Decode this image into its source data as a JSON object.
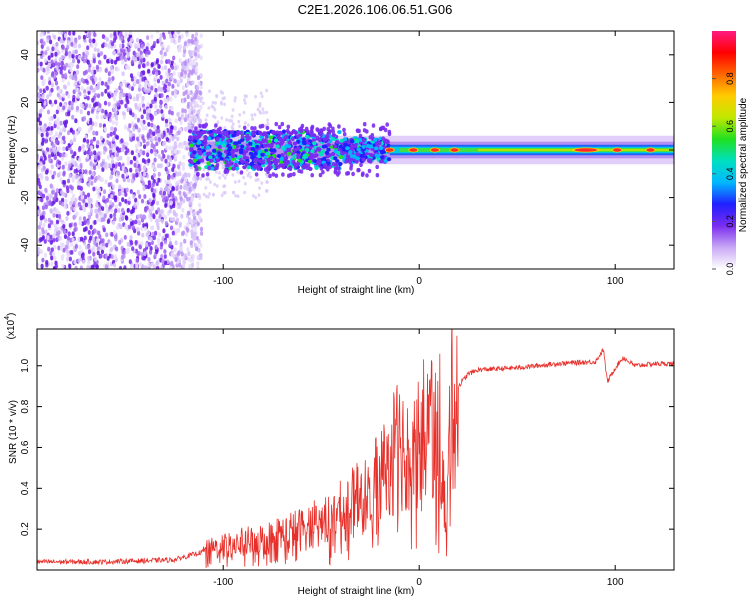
{
  "title": "C2E1.2026.106.06.51.G06",
  "chart_data": [
    {
      "type": "heatmap",
      "name": "spectrogram",
      "xlabel": "Height of straight line (km)",
      "ylabel": "Frequency (Hz)",
      "xlim": [
        -195,
        130
      ],
      "ylim": [
        -50,
        50
      ],
      "xticks": [
        -100,
        0,
        100
      ],
      "xtick_labels": [
        "-100",
        "0",
        "100"
      ],
      "yticks": [
        -40,
        -20,
        0,
        20,
        40
      ],
      "ytick_labels": [
        "-40",
        "-20",
        "0",
        "20",
        "40"
      ],
      "colorbar": {
        "label": "Normalized spectral amplitude",
        "range": [
          0,
          1
        ],
        "ticks": [
          0.0,
          0.2,
          0.4,
          0.6,
          0.8
        ],
        "tick_labels": [
          "0.0",
          "0.2",
          "0.4",
          "0.6",
          "0.8"
        ],
        "colors": [
          "#ffffff",
          "#c9a8f5",
          "#7a2cf0",
          "#2020ff",
          "#00b8ff",
          "#00e0c0",
          "#20e020",
          "#c0e800",
          "#ffcc00",
          "#ff6600",
          "#ff0000",
          "#ff1a80"
        ]
      },
      "regions": {
        "noise_x_range": [
          -195,
          -117
        ],
        "transition_x": -117,
        "tone_center_hz": 0,
        "tone_peaks_x": [
          -15,
          -3,
          8,
          18,
          85,
          101,
          118
        ]
      }
    },
    {
      "type": "line",
      "name": "snr",
      "xlabel": "Height of straight line (km)",
      "ylabel": "SNR (10 * v/v)",
      "scale_label": "(x10",
      "scale_exponent": "4",
      "scale_close": ")",
      "xlim": [
        -195,
        130
      ],
      "ylim": [
        0,
        1.18
      ],
      "xticks": [
        -100,
        0,
        100
      ],
      "xtick_labels": [
        "-100",
        "0",
        "100"
      ],
      "yticks": [
        0.2,
        0.4,
        0.6,
        0.8,
        1.0
      ],
      "ytick_labels": [
        "0.2",
        "0.4",
        "0.6",
        "0.8",
        "1.0"
      ],
      "color": "#e8302a",
      "series": [
        {
          "name": "SNR",
          "x": [
            -195,
            -160,
            -125,
            -110,
            -100,
            -80,
            -60,
            -45,
            -35,
            -25,
            -20,
            -15,
            -10,
            -5,
            0,
            5,
            10,
            12,
            14,
            16,
            20,
            25,
            30,
            50,
            70,
            90,
            94,
            96,
            100,
            104,
            110,
            120,
            130
          ],
          "values": [
            0.04,
            0.04,
            0.05,
            0.09,
            0.12,
            0.15,
            0.2,
            0.25,
            0.32,
            0.38,
            0.45,
            0.55,
            0.62,
            0.6,
            0.65,
            0.72,
            0.8,
            0.45,
            0.18,
            0.8,
            0.9,
            0.96,
            0.98,
            0.99,
            1.01,
            1.02,
            1.08,
            0.92,
            0.99,
            1.04,
            1.0,
            1.01,
            1.01
          ]
        }
      ]
    }
  ]
}
